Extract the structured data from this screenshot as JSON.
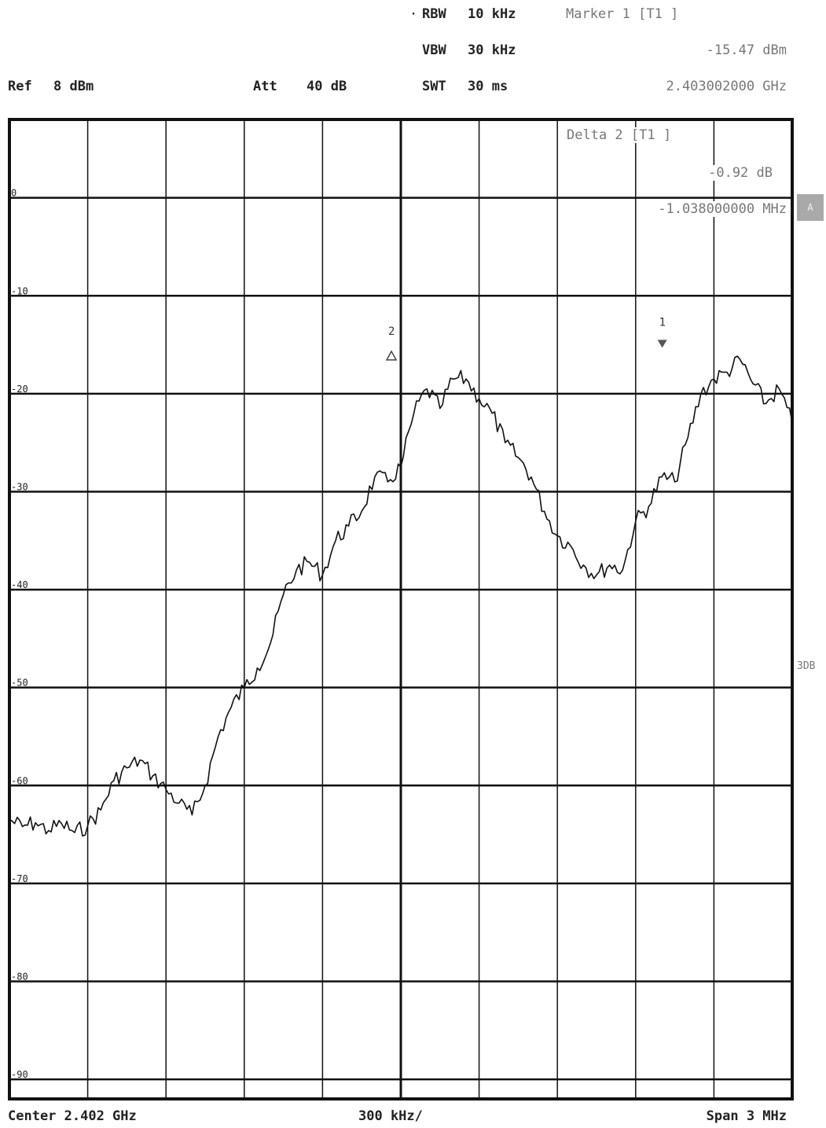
{
  "header": {
    "rbw_label": "RBW",
    "rbw_value": "10 kHz",
    "vbw_label": "VBW",
    "vbw_value": "30 kHz",
    "swt_label": "SWT",
    "swt_value": "30 ms",
    "ref_label": "Ref",
    "ref_value": "8 dBm",
    "att_label": "Att",
    "att_value": "40 dB",
    "marker1_title": "Marker 1 [T1 ]",
    "marker1_level": "-15.47 dBm",
    "marker1_freq": "2.403002000 GHz",
    "delta2_title": "Delta 2 [T1 ]",
    "delta2_level": "-0.92 dB",
    "delta2_freq": "-1.038000000 MHz"
  },
  "side": {
    "trace_badge": "A",
    "detector_label": "3DB"
  },
  "footer": {
    "center": "Center 2.402 GHz",
    "per_div": "300 kHz/",
    "span": "Span 3 MHz"
  },
  "chart_data": {
    "type": "line",
    "x_unit": "GHz",
    "y_unit": "dBm",
    "xlim": [
      2.4005,
      2.4035
    ],
    "ylim": [
      -92,
      8
    ],
    "grid": true,
    "yticks": [
      {
        "v": 0,
        "label": "0"
      },
      {
        "v": -10,
        "label": "-10"
      },
      {
        "v": -20,
        "label": "-20"
      },
      {
        "v": -30,
        "label": "-30"
      },
      {
        "v": -40,
        "label": "-40"
      },
      {
        "v": -50,
        "label": "-50"
      },
      {
        "v": -60,
        "label": "-60"
      },
      {
        "v": -70,
        "label": "-70"
      },
      {
        "v": -80,
        "label": "-80"
      },
      {
        "v": -90,
        "label": "-90"
      }
    ],
    "series": [
      {
        "x": [
          2.4005,
          2.40055,
          2.4006,
          2.40065,
          2.4007,
          2.40075,
          2.4008,
          2.40085,
          2.4009,
          2.40095,
          2.401,
          2.40105,
          2.4011,
          2.40115,
          2.4012,
          2.40125,
          2.4013,
          2.40135,
          2.4014,
          2.40145,
          2.4015,
          2.40155,
          2.4016,
          2.40165,
          2.4017,
          2.40175,
          2.4018,
          2.40185,
          2.4019,
          2.40195,
          2.402,
          2.40205,
          2.4021,
          2.40215,
          2.4022,
          2.40225,
          2.4023,
          2.40235,
          2.4024,
          2.40245,
          2.4025,
          2.40255,
          2.4026,
          2.40265,
          2.4027,
          2.40275,
          2.4028,
          2.40285,
          2.4029,
          2.40295,
          2.403,
          2.40305,
          2.4031,
          2.40315,
          2.4032,
          2.40325,
          2.4033,
          2.40335,
          2.4034,
          2.40345,
          2.4035
        ],
        "y": [
          -63.5,
          -64.2,
          -63.8,
          -64.6,
          -63.9,
          -64.8,
          -64.1,
          -62.5,
          -59.5,
          -58.2,
          -57.4,
          -59.0,
          -60.4,
          -61.8,
          -63.0,
          -60.0,
          -55.0,
          -52.0,
          -50.0,
          -48.0,
          -45.5,
          -40.5,
          -38.0,
          -37.2,
          -38.5,
          -35.0,
          -33.5,
          -32.0,
          -28.5,
          -29.0,
          -27.5,
          -22.0,
          -19.5,
          -21.5,
          -18.5,
          -18.5,
          -20.5,
          -22.0,
          -25.0,
          -26.5,
          -28.5,
          -32.0,
          -34.5,
          -35.5,
          -37.5,
          -38.5,
          -37.5,
          -38.0,
          -33.0,
          -31.5,
          -28.5,
          -29.0,
          -24.5,
          -20.0,
          -18.5,
          -17.8,
          -16.5,
          -19.0,
          -21.0,
          -19.5,
          -23.0
        ]
      }
    ],
    "markers": [
      {
        "label": "1",
        "x": 2.403002,
        "y": -15.47,
        "symbol": "triangle-down"
      },
      {
        "label": "2",
        "x": 2.401964,
        "y": -16.39,
        "symbol": "triangle-up"
      }
    ]
  }
}
